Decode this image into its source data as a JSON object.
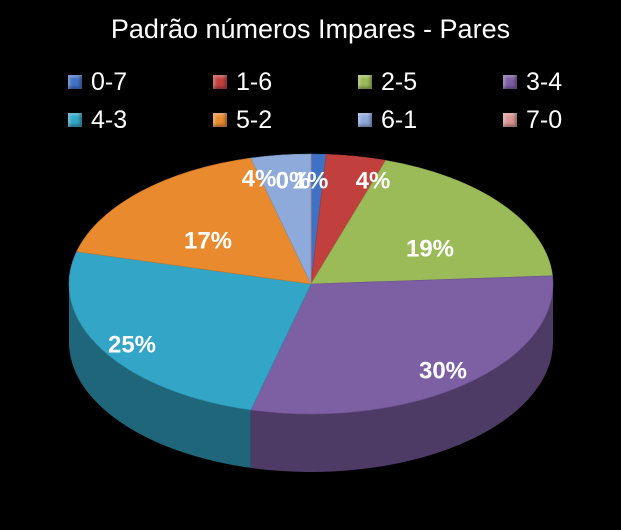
{
  "chart_data": {
    "type": "pie",
    "title": "Padrão números Impares - Pares",
    "legend_position": "top",
    "slices": [
      {
        "label": "0-7",
        "value": 1,
        "data_label": "1%",
        "color": "#3F72C4"
      },
      {
        "label": "1-6",
        "value": 4,
        "data_label": "4%",
        "color": "#C1403D"
      },
      {
        "label": "2-5",
        "value": 19,
        "data_label": "19%",
        "color": "#9BBB59"
      },
      {
        "label": "3-4",
        "value": 30,
        "data_label": "30%",
        "color": "#7D5FA3"
      },
      {
        "label": "4-3",
        "value": 25,
        "data_label": "25%",
        "color": "#33A5C6"
      },
      {
        "label": "5-2",
        "value": 17,
        "data_label": "17%",
        "color": "#EA8A2E"
      },
      {
        "label": "6-1",
        "value": 4,
        "data_label": "4%",
        "color": "#8EAADB"
      },
      {
        "label": "7-0",
        "value": 0,
        "data_label": "0%",
        "color": "#D99694"
      }
    ]
  }
}
